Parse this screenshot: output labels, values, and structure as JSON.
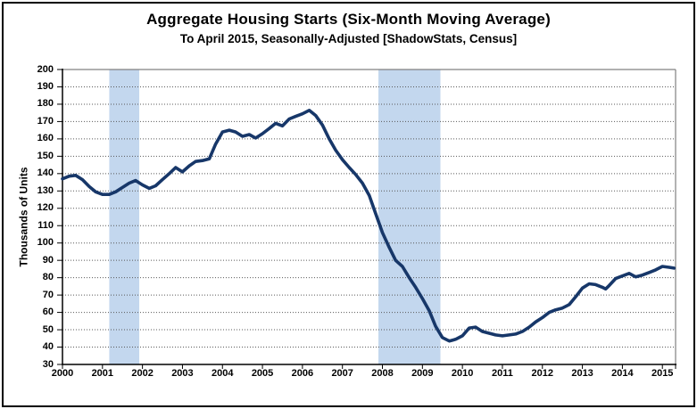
{
  "chart_data": {
    "type": "line",
    "title": "Aggregate Housing Starts (Six-Month Moving Average)",
    "subtitle": "To April 2015, Seasonally-Adjusted [ShadowStats, Census]",
    "ylabel": "Thousands of Units",
    "xlabel": "",
    "ylim": [
      30,
      200
    ],
    "xlim": [
      2000,
      2015.33
    ],
    "y_ticks": [
      200,
      190,
      180,
      170,
      160,
      150,
      140,
      130,
      120,
      110,
      100,
      90,
      80,
      70,
      60,
      50,
      40,
      30
    ],
    "x_ticks": [
      "2000",
      "2001",
      "2002",
      "2003",
      "2004",
      "2005",
      "2006",
      "2007",
      "2008",
      "2009",
      "2010",
      "2011",
      "2012",
      "2013",
      "2014",
      "2015"
    ],
    "grid": "horizontal-dotted",
    "legend_position": "none",
    "shaded_bands": [
      {
        "name": "recession-2001",
        "from": 2001.17,
        "to": 2001.92
      },
      {
        "name": "recession-2007-2009",
        "from": 2007.9,
        "to": 2009.45
      }
    ],
    "series": [
      {
        "name": "Aggregate Housing Starts (6-month moving average, thousands of units)",
        "points": [
          [
            2000.0,
            137
          ],
          [
            2000.17,
            138.5
          ],
          [
            2000.33,
            139
          ],
          [
            2000.5,
            136.5
          ],
          [
            2000.67,
            132.5
          ],
          [
            2000.83,
            129.5
          ],
          [
            2001.0,
            128
          ],
          [
            2001.17,
            128
          ],
          [
            2001.33,
            129.5
          ],
          [
            2001.5,
            132
          ],
          [
            2001.67,
            134.5
          ],
          [
            2001.83,
            136
          ],
          [
            2002.0,
            133.5
          ],
          [
            2002.17,
            131.5
          ],
          [
            2002.33,
            133
          ],
          [
            2002.5,
            136.5
          ],
          [
            2002.67,
            140
          ],
          [
            2002.83,
            143.5
          ],
          [
            2003.0,
            141
          ],
          [
            2003.17,
            144.5
          ],
          [
            2003.33,
            147
          ],
          [
            2003.5,
            147.5
          ],
          [
            2003.67,
            148.5
          ],
          [
            2003.83,
            157
          ],
          [
            2004.0,
            164
          ],
          [
            2004.17,
            165
          ],
          [
            2004.33,
            164
          ],
          [
            2004.5,
            161.5
          ],
          [
            2004.67,
            162.5
          ],
          [
            2004.83,
            160.5
          ],
          [
            2005.0,
            163
          ],
          [
            2005.17,
            166
          ],
          [
            2005.33,
            169
          ],
          [
            2005.5,
            167.5
          ],
          [
            2005.67,
            171.5
          ],
          [
            2005.83,
            173
          ],
          [
            2006.0,
            174.5
          ],
          [
            2006.17,
            176.5
          ],
          [
            2006.33,
            173.5
          ],
          [
            2006.5,
            168
          ],
          [
            2006.67,
            160
          ],
          [
            2006.83,
            153.5
          ],
          [
            2007.0,
            148
          ],
          [
            2007.17,
            143.5
          ],
          [
            2007.33,
            139.5
          ],
          [
            2007.5,
            134.5
          ],
          [
            2007.67,
            127.5
          ],
          [
            2007.83,
            117
          ],
          [
            2008.0,
            106
          ],
          [
            2008.17,
            97.5
          ],
          [
            2008.33,
            90
          ],
          [
            2008.5,
            86.5
          ],
          [
            2008.67,
            80
          ],
          [
            2008.83,
            74.5
          ],
          [
            2009.0,
            68
          ],
          [
            2009.17,
            61
          ],
          [
            2009.33,
            52
          ],
          [
            2009.5,
            45.5
          ],
          [
            2009.67,
            43.5
          ],
          [
            2009.83,
            44.5
          ],
          [
            2010.0,
            46.5
          ],
          [
            2010.17,
            51
          ],
          [
            2010.33,
            51.5
          ],
          [
            2010.5,
            49
          ],
          [
            2010.67,
            48
          ],
          [
            2010.83,
            47
          ],
          [
            2011.0,
            46.5
          ],
          [
            2011.17,
            47
          ],
          [
            2011.33,
            47.5
          ],
          [
            2011.5,
            49
          ],
          [
            2011.67,
            51.5
          ],
          [
            2011.83,
            54.5
          ],
          [
            2012.0,
            57
          ],
          [
            2012.17,
            60
          ],
          [
            2012.33,
            61.5
          ],
          [
            2012.5,
            62.5
          ],
          [
            2012.67,
            64.5
          ],
          [
            2012.83,
            69
          ],
          [
            2013.0,
            74
          ],
          [
            2013.17,
            76.5
          ],
          [
            2013.33,
            76
          ],
          [
            2013.5,
            74.5
          ],
          [
            2013.58,
            73.5
          ],
          [
            2013.67,
            75.5
          ],
          [
            2013.83,
            79.5
          ],
          [
            2014.0,
            81
          ],
          [
            2014.17,
            82.5
          ],
          [
            2014.33,
            80.5
          ],
          [
            2014.5,
            81.5
          ],
          [
            2014.67,
            83
          ],
          [
            2014.83,
            84.5
          ],
          [
            2015.0,
            86.5
          ],
          [
            2015.17,
            86
          ],
          [
            2015.29,
            85.5
          ]
        ]
      }
    ],
    "colors": {
      "line": "#173769",
      "band": "#C3D7EE",
      "grid": "#595959",
      "plot_border": "#808080",
      "axis": "#000000",
      "background": "#FFFFFF",
      "text": "#000000"
    }
  }
}
